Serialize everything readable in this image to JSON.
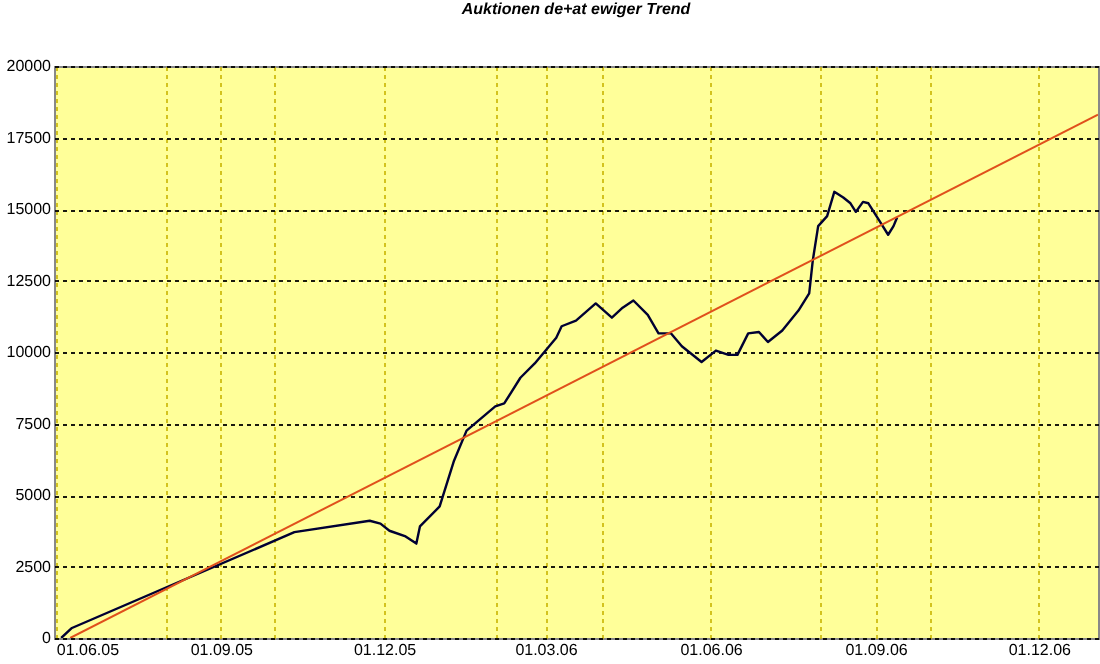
{
  "chart_data": {
    "type": "line",
    "title": "Auktionen de+at ewiger Trend",
    "x": [
      "2005-06-04",
      "2005-06-10",
      "2005-10-12",
      "2005-11-23",
      "2005-11-29",
      "2005-12-04",
      "2005-12-13",
      "2005-12-19",
      "2005-12-21",
      "2006-01-01",
      "2006-01-09",
      "2006-01-16",
      "2006-02-01",
      "2006-02-06",
      "2006-02-15",
      "2006-02-23",
      "2006-03-07",
      "2006-03-10",
      "2006-03-18",
      "2006-03-29",
      "2006-04-07",
      "2006-04-13",
      "2006-04-19",
      "2006-04-27",
      "2006-05-03",
      "2006-05-10",
      "2006-05-16",
      "2006-05-27",
      "2006-06-04",
      "2006-06-11",
      "2006-06-16",
      "2006-06-22",
      "2006-06-28",
      "2006-07-03",
      "2006-07-11",
      "2006-07-20",
      "2006-07-26",
      "2006-07-28",
      "2006-07-31",
      "2006-08-05",
      "2006-08-09",
      "2006-08-14",
      "2006-08-18",
      "2006-08-21",
      "2006-08-25",
      "2006-08-28",
      "2006-09-03",
      "2006-09-08",
      "2006-09-11",
      "2006-09-13"
    ],
    "series": [
      {
        "color": "#000033",
        "values": [
          0,
          350,
          3700,
          4100,
          4000,
          3750,
          3550,
          3300,
          3900,
          4600,
          6200,
          7250,
          8100,
          8200,
          9100,
          9600,
          10500,
          10900,
          11100,
          11700,
          11200,
          11550,
          11800,
          11300,
          10650,
          10650,
          10200,
          9650,
          10050,
          9900,
          9900,
          10650,
          10700,
          10350,
          10750,
          11450,
          12050,
          13200,
          14400,
          14750,
          15600,
          15400,
          15200,
          14900,
          15250,
          15200,
          14600,
          14100,
          14400,
          14700
        ]
      },
      {
        "type": "line",
        "color": "#e0501c",
        "x": [
          "2005-06-09",
          "2007-01-03"
        ],
        "values": [
          0,
          18300
        ]
      }
    ],
    "xlim": [
      "2005-05-31",
      "2007-01-03"
    ],
    "xticks": [
      {
        "value": "2005-06-01",
        "label": "01.06.05"
      },
      {
        "value": "2005-08-01",
        "label": null
      },
      {
        "value": "2005-09-01",
        "label": "01.09.05"
      },
      {
        "value": "2005-10-01",
        "label": null
      },
      {
        "value": "2005-12-01",
        "label": "01.12.05"
      },
      {
        "value": "2006-02-01",
        "label": null
      },
      {
        "value": "2006-03-01",
        "label": "01.03.06"
      },
      {
        "value": "2006-04-01",
        "label": null
      },
      {
        "value": "2006-06-01",
        "label": "01.06.06"
      },
      {
        "value": "2006-08-01",
        "label": null
      },
      {
        "value": "2006-09-01",
        "label": "01.09.06"
      },
      {
        "value": "2006-10-01",
        "label": null
      },
      {
        "value": "2006-12-01",
        "label": "01.12.06"
      }
    ],
    "ylim": [
      0,
      20000
    ],
    "yticks": [
      0,
      2500,
      5000,
      7500,
      10000,
      12500,
      15000,
      17500,
      20000
    ],
    "grid": true
  }
}
